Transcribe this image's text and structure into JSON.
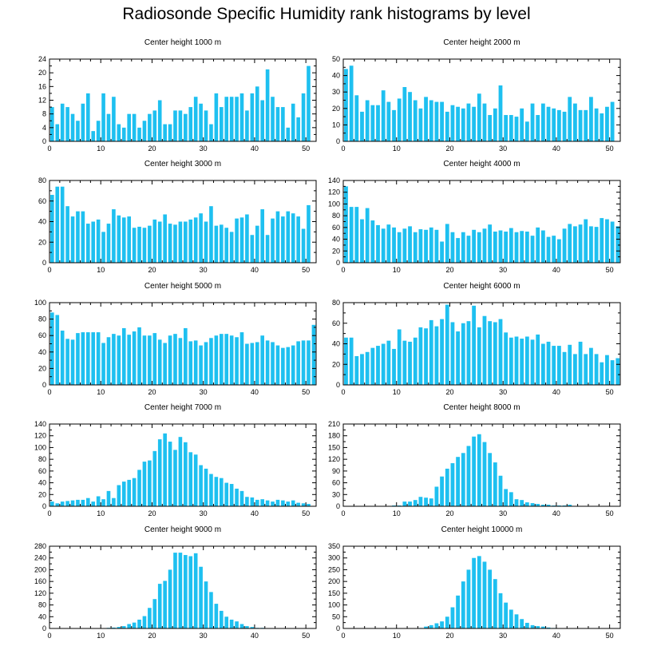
{
  "title": "Radiosonde Specific Humidity rank histograms by level",
  "colors": {
    "bar": "#1ec0f0",
    "axis": "#000000"
  },
  "chart_data": [
    {
      "type": "bar",
      "title": "Center height 1000 m",
      "xlim": [
        0,
        52
      ],
      "ylim": [
        0,
        24
      ],
      "xticks": [
        0,
        10,
        20,
        30,
        40,
        50
      ],
      "yticks": [
        0,
        4,
        8,
        12,
        16,
        20,
        24
      ],
      "values": [
        10,
        5,
        11,
        10,
        8,
        6,
        11,
        14,
        3,
        6,
        14,
        8,
        13,
        5,
        4,
        8,
        8,
        4,
        6,
        8,
        9,
        12,
        5,
        5,
        9,
        9,
        8,
        10,
        13,
        11,
        9,
        5,
        14,
        10,
        13,
        13,
        13,
        14,
        9,
        14,
        16,
        12,
        21,
        13,
        10,
        10,
        4,
        11,
        7,
        14,
        22
      ]
    },
    {
      "type": "bar",
      "title": "Center height 2000 m",
      "xlim": [
        0,
        52
      ],
      "ylim": [
        0,
        50
      ],
      "xticks": [
        0,
        10,
        20,
        30,
        40,
        50
      ],
      "yticks": [
        0,
        10,
        20,
        30,
        40,
        50
      ],
      "values": [
        44,
        46,
        28,
        18,
        25,
        22,
        22,
        31,
        24,
        19,
        26,
        33,
        30,
        25,
        20,
        27,
        25,
        24,
        24,
        18,
        22,
        21,
        20,
        23,
        21,
        29,
        23,
        16,
        20,
        34,
        16,
        16,
        15,
        20,
        12,
        23,
        16,
        23,
        21,
        20,
        19,
        18,
        27,
        23,
        19,
        19,
        27,
        20,
        17,
        21,
        24
      ]
    },
    {
      "type": "bar",
      "title": "Center height 3000 m",
      "xlim": [
        0,
        52
      ],
      "ylim": [
        0,
        80
      ],
      "xticks": [
        0,
        10,
        20,
        30,
        40,
        50
      ],
      "yticks": [
        0,
        20,
        40,
        60,
        80
      ],
      "values": [
        66,
        74,
        74,
        55,
        45,
        50,
        50,
        38,
        40,
        42,
        30,
        38,
        52,
        46,
        44,
        45,
        34,
        35,
        34,
        36,
        42,
        40,
        47,
        38,
        37,
        40,
        40,
        42,
        44,
        48,
        40,
        55,
        36,
        37,
        34,
        30,
        43,
        44,
        47,
        27,
        36,
        52,
        27,
        43,
        50,
        45,
        50,
        48,
        45,
        33,
        56
      ]
    },
    {
      "type": "bar",
      "title": "Center height 4000 m",
      "xlim": [
        0,
        52
      ],
      "ylim": [
        0,
        140
      ],
      "xticks": [
        0,
        10,
        20,
        30,
        40,
        50
      ],
      "yticks": [
        0,
        20,
        40,
        60,
        80,
        100,
        120,
        140
      ],
      "values": [
        130,
        95,
        95,
        74,
        93,
        72,
        64,
        58,
        65,
        60,
        52,
        58,
        62,
        52,
        57,
        56,
        60,
        56,
        36,
        66,
        52,
        42,
        52,
        46,
        56,
        52,
        58,
        65,
        53,
        55,
        53,
        59,
        52,
        54,
        53,
        46,
        60,
        55,
        44,
        46,
        40,
        58,
        66,
        62,
        65,
        74,
        62,
        61,
        76,
        74,
        70,
        62
      ]
    },
    {
      "type": "bar",
      "title": "Center height 5000 m",
      "xlim": [
        0,
        52
      ],
      "ylim": [
        0,
        100
      ],
      "xticks": [
        0,
        10,
        20,
        30,
        40,
        50
      ],
      "yticks": [
        0,
        20,
        40,
        60,
        80,
        100
      ],
      "values": [
        88,
        85,
        66,
        56,
        55,
        63,
        64,
        64,
        64,
        64,
        51,
        58,
        62,
        60,
        69,
        61,
        65,
        70,
        60,
        60,
        63,
        55,
        51,
        60,
        62,
        57,
        69,
        53,
        54,
        48,
        52,
        57,
        60,
        62,
        62,
        60,
        58,
        64,
        50,
        51,
        52,
        60,
        54,
        52,
        48,
        45,
        46,
        48,
        53,
        54,
        54,
        73
      ]
    },
    {
      "type": "bar",
      "title": "Center height 6000 m",
      "xlim": [
        0,
        52
      ],
      "ylim": [
        0,
        80
      ],
      "xticks": [
        0,
        10,
        20,
        30,
        40,
        50
      ],
      "yticks": [
        0,
        20,
        40,
        60,
        80
      ],
      "values": [
        46,
        46,
        28,
        30,
        32,
        36,
        38,
        40,
        43,
        35,
        54,
        43,
        42,
        46,
        56,
        55,
        63,
        57,
        64,
        78,
        61,
        52,
        60,
        62,
        77,
        56,
        67,
        62,
        61,
        64,
        51,
        46,
        47,
        45,
        47,
        44,
        49,
        40,
        42,
        38,
        38,
        32,
        39,
        30,
        42,
        30,
        36,
        30,
        22,
        29,
        24,
        26
      ]
    },
    {
      "type": "bar",
      "title": "Center height 7000 m",
      "xlim": [
        0,
        52
      ],
      "ylim": [
        0,
        140
      ],
      "xticks": [
        0,
        10,
        20,
        30,
        40,
        50
      ],
      "yticks": [
        0,
        20,
        40,
        60,
        80,
        100,
        120,
        140
      ],
      "values": [
        8,
        5,
        8,
        9,
        10,
        11,
        11,
        14,
        8,
        17,
        12,
        26,
        14,
        36,
        42,
        45,
        48,
        62,
        76,
        78,
        94,
        114,
        124,
        110,
        96,
        118,
        109,
        92,
        88,
        70,
        64,
        55,
        50,
        48,
        40,
        38,
        30,
        26,
        16,
        15,
        11,
        12,
        10,
        8,
        11,
        10,
        8,
        10,
        6,
        5,
        4
      ]
    },
    {
      "type": "bar",
      "title": "Center height 8000 m",
      "xlim": [
        0,
        52
      ],
      "ylim": [
        0,
        210
      ],
      "xticks": [
        0,
        10,
        20,
        30,
        40,
        50
      ],
      "yticks": [
        0,
        30,
        60,
        90,
        120,
        150,
        180,
        210
      ],
      "values": [
        0,
        0,
        0,
        0,
        0,
        0,
        0,
        0,
        1,
        2,
        2,
        12,
        12,
        16,
        24,
        22,
        20,
        50,
        76,
        96,
        110,
        126,
        136,
        154,
        178,
        184,
        164,
        136,
        112,
        78,
        44,
        36,
        18,
        16,
        10,
        8,
        6,
        4,
        4,
        2,
        2,
        2,
        4,
        1,
        1,
        1,
        0,
        0,
        0,
        0,
        0
      ]
    },
    {
      "type": "bar",
      "title": "Center height 9000 m",
      "xlim": [
        0,
        52
      ],
      "ylim": [
        0,
        280
      ],
      "xticks": [
        0,
        10,
        20,
        30,
        40,
        50
      ],
      "yticks": [
        0,
        40,
        80,
        120,
        160,
        200,
        240,
        280
      ],
      "values": [
        0,
        0,
        0,
        0,
        0,
        0,
        0,
        0,
        0,
        0,
        1,
        2,
        3,
        5,
        8,
        15,
        20,
        30,
        42,
        70,
        100,
        152,
        162,
        200,
        258,
        258,
        250,
        246,
        256,
        210,
        160,
        124,
        84,
        60,
        40,
        30,
        24,
        15,
        8,
        5,
        2,
        2,
        1,
        1,
        0,
        0,
        0,
        0,
        0,
        0,
        0
      ]
    },
    {
      "type": "bar",
      "title": "Center height 10000 m",
      "xlim": [
        0,
        52
      ],
      "ylim": [
        0,
        350
      ],
      "xticks": [
        0,
        10,
        20,
        30,
        40,
        50
      ],
      "yticks": [
        0,
        50,
        100,
        150,
        200,
        250,
        300,
        350
      ],
      "values": [
        0,
        0,
        0,
        0,
        0,
        0,
        0,
        0,
        0,
        0,
        0,
        0,
        0,
        0,
        2,
        8,
        14,
        22,
        30,
        50,
        90,
        140,
        200,
        250,
        300,
        308,
        284,
        250,
        210,
        150,
        110,
        80,
        60,
        40,
        24,
        14,
        10,
        8,
        4,
        2,
        1,
        1,
        0,
        0,
        0,
        0,
        0,
        0,
        0,
        0,
        0
      ]
    }
  ]
}
